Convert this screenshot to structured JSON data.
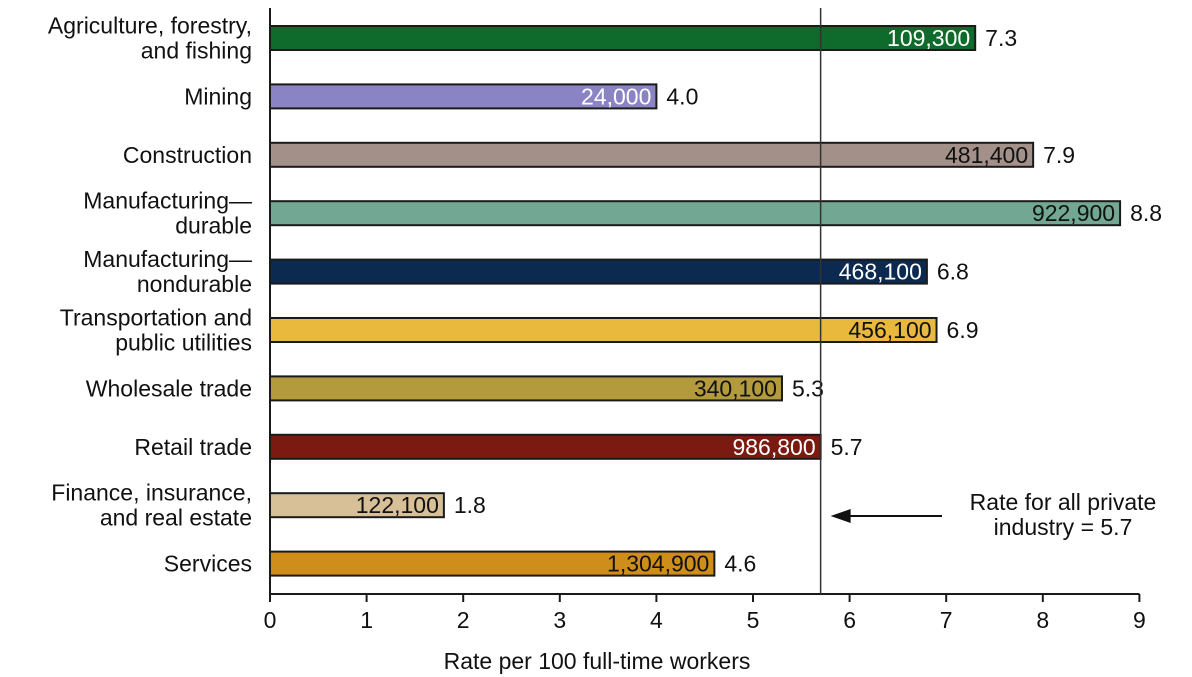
{
  "chart_data": {
    "type": "bar",
    "orientation": "horizontal",
    "xlabel": "Rate per 100 full-time workers",
    "xlim": [
      0,
      9
    ],
    "xticks": [
      "0",
      "1",
      "2",
      "3",
      "4",
      "5",
      "6",
      "7",
      "8",
      "9"
    ],
    "categories": [
      [
        "Agriculture, forestry,",
        "and fishing"
      ],
      [
        "Mining"
      ],
      [
        "Construction"
      ],
      [
        "Manufacturing—",
        "durable"
      ],
      [
        "Manufacturing—",
        "nondurable"
      ],
      [
        "Transportation and",
        "public utilities"
      ],
      [
        "Wholesale trade"
      ],
      [
        "Retail trade"
      ],
      [
        "Finance, insurance,",
        "and real estate"
      ],
      [
        "Services"
      ]
    ],
    "values": [
      7.3,
      4.0,
      7.9,
      8.8,
      6.8,
      6.9,
      5.3,
      5.7,
      1.8,
      4.6
    ],
    "value_labels": [
      "7.3",
      "4.0",
      "7.9",
      "8.8",
      "6.8",
      "6.9",
      "5.3",
      "5.7",
      "1.8",
      "4.6"
    ],
    "counts": [
      "109,300",
      "24,000",
      "481,400",
      "922,900",
      "468,100",
      "456,100",
      "340,100",
      "986,800",
      "122,100",
      "1,304,900"
    ],
    "colors": [
      "#0f6b2b",
      "#8a84c4",
      "#a39189",
      "#72a893",
      "#0c2a4f",
      "#e9b93d",
      "#b39a3c",
      "#7b1a10",
      "#d7bf98",
      "#cf8e1a"
    ],
    "count_text_colors": [
      "#ffffff",
      "#ffffff",
      "#111111",
      "#111111",
      "#ffffff",
      "#111111",
      "#111111",
      "#ffffff",
      "#111111",
      "#111111"
    ],
    "reference_line": {
      "value": 5.7,
      "label_lines": [
        "Rate for all private",
        "industry = 5.7"
      ]
    },
    "grid": false,
    "legend": "none"
  }
}
